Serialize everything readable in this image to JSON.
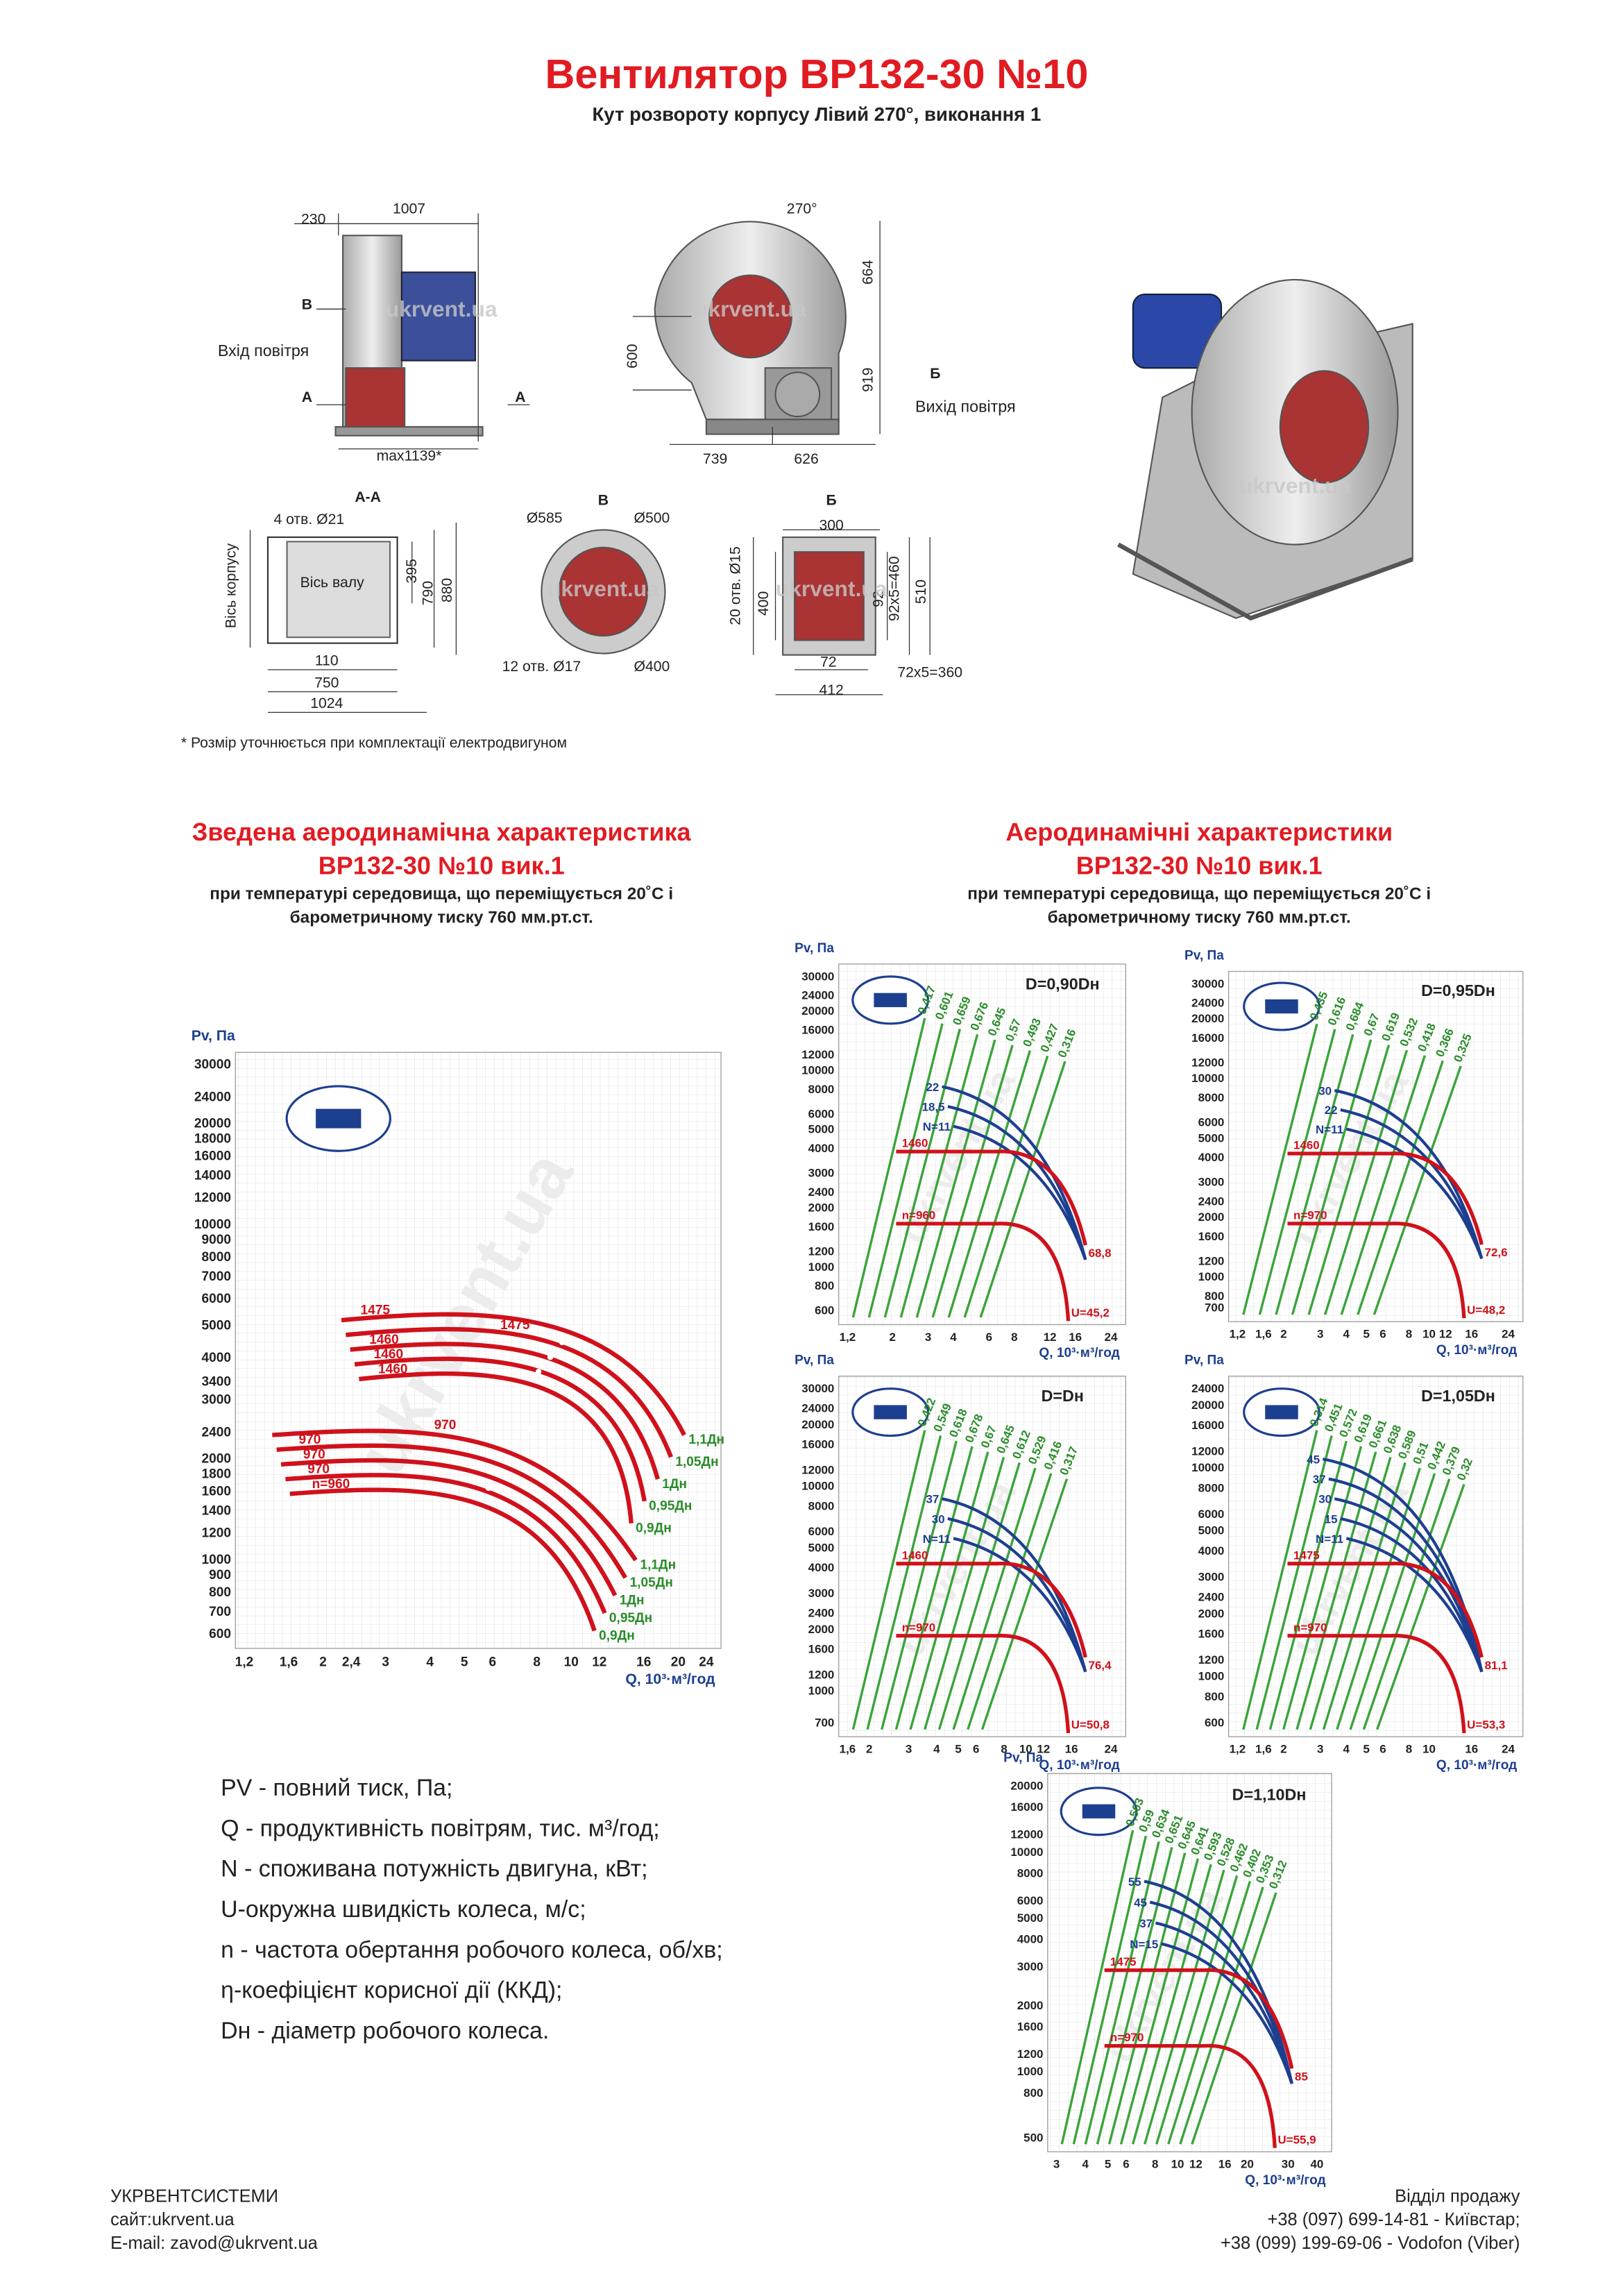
{
  "header": {
    "title": "Вентилятор ВР132-30 №10",
    "subtitle": "Кут розвороту корпусу Лівий 270°, виконання 1"
  },
  "drawings": {
    "front": [
      "230",
      "1007",
      "В",
      "Вхід повітря",
      "А",
      "А",
      "max1139*"
    ],
    "side": [
      "270°",
      "664",
      "600",
      "919",
      "Б",
      "Вихід повітря",
      "739",
      "626"
    ],
    "section_aa": [
      "А-А",
      "4 отв. Ø21",
      "Вісь корпусу",
      "Вісь валу",
      "395",
      "790",
      "880",
      "110",
      "750",
      "1024"
    ],
    "view_v": [
      "В",
      "Ø585",
      "Ø500",
      "12 отв. Ø17",
      "Ø400"
    ],
    "view_b": [
      "Б",
      "300",
      "20 отв. Ø15",
      "400",
      "92",
      "92x5=460",
      "510",
      "72",
      "72x5=360",
      "412"
    ],
    "note": "* Розмір уточнюється при комплектації електродвигуном"
  },
  "watermark": "ukrvent.ua",
  "summary": {
    "title": [
      "Зведена аеродинамічна характеристика",
      "ВР132-30 №10 вик.1",
      "при температурі середовища, що переміщується 20˚С і",
      "барометричному тиску 760 мм.рт.ст."
    ],
    "chart": {
      "y_label": "Pv, Па",
      "x_label": "Q, 10³·м³/год",
      "yticks": [
        "30000",
        "24000",
        "20000",
        "18000",
        "16000",
        "14000",
        "12000",
        "10000",
        "9000",
        "8000",
        "7000",
        "6000",
        "5000",
        "4000",
        "3400",
        "3000",
        "2400",
        "2000",
        "1800",
        "1600",
        "1400",
        "1200",
        "1000",
        "900",
        "800",
        "700",
        "600"
      ],
      "xticks": [
        "1,2",
        "1,6",
        "2",
        "2,4",
        "3",
        "4",
        "5",
        "6",
        "8",
        "10",
        "12",
        "16",
        "20",
        "24"
      ],
      "upper": [
        {
          "speed": "1475",
          "d": "1,1Дн"
        },
        {
          "speed": "1475",
          "d": "1,05Дн"
        },
        {
          "speed": "1460",
          "d": "1Дн"
        },
        {
          "speed": "1460",
          "d": "0,95Дн"
        },
        {
          "speed": "1460",
          "d": "0,9Дн"
        }
      ],
      "lower": [
        {
          "speed": "970",
          "d": "1,1Дн"
        },
        {
          "speed": "970",
          "d": "1,05Дн"
        },
        {
          "speed": "970",
          "d": "1Дн"
        },
        {
          "speed": "970",
          "d": "0,95Дн"
        },
        {
          "speed": "n=960",
          "d": "0,9Дн"
        }
      ]
    }
  },
  "performance": {
    "title": [
      "Аеродинамічні характеристики",
      "ВР132-30 №10 вик.1",
      "при температурі середовища, що переміщується 20˚С і",
      "барометричному тиску 760 мм.рт.ст."
    ],
    "charts": [
      {
        "title": "D=0,90Dн",
        "y_label": "Pv, Па",
        "x_label": "Q, 10³·м³/год",
        "yticks": [
          "30000",
          "24000",
          "20000",
          "16000",
          "12000",
          "10000",
          "8000",
          "6000",
          "5000",
          "4000",
          "3000",
          "2400",
          "2000",
          "1600",
          "1200",
          "1000",
          "800",
          "600"
        ],
        "xticks": [
          "1,2",
          "2",
          "3",
          "4",
          "6",
          "8",
          "12",
          "16",
          "24"
        ],
        "speeds": [
          "1460",
          "n=960"
        ],
        "powers": [
          "N=11",
          "18,5",
          "22"
        ],
        "efficiency": [
          "0,417",
          "0,601",
          "0,659",
          "0,676",
          "0,645",
          "0,57",
          "0,493",
          "0,427",
          "0,316"
        ],
        "ends": [
          "68,8",
          "U=45,2"
        ]
      },
      {
        "title": "D=0,95Dн",
        "y_label": "Pv, Па",
        "x_label": "Q, 10³·м³/год",
        "yticks": [
          "30000",
          "24000",
          "20000",
          "16000",
          "12000",
          "10000",
          "8000",
          "6000",
          "5000",
          "4000",
          "3000",
          "2400",
          "2000",
          "1600",
          "1200",
          "1000",
          "800",
          "700"
        ],
        "xticks": [
          "1,2",
          "1,6",
          "2",
          "3",
          "4",
          "5",
          "6",
          "8",
          "10",
          "12",
          "16",
          "24"
        ],
        "speeds": [
          "1460",
          "n=970"
        ],
        "powers": [
          "N=11",
          "22",
          "30"
        ],
        "efficiency": [
          "0,435",
          "0,616",
          "0,684",
          "0,67",
          "0,619",
          "0,532",
          "0,418",
          "0,366",
          "0,325"
        ],
        "ends": [
          "72,6",
          "U=48,2"
        ]
      },
      {
        "title": "D=Dн",
        "y_label": "Pv, Па",
        "x_label": "Q, 10³·м³/год",
        "yticks": [
          "30000",
          "24000",
          "20000",
          "16000",
          "12000",
          "10000",
          "8000",
          "6000",
          "5000",
          "4000",
          "3000",
          "2400",
          "2000",
          "1600",
          "1200",
          "1000",
          "700"
        ],
        "xticks": [
          "1,6",
          "2",
          "3",
          "4",
          "5",
          "6",
          "8",
          "10",
          "12",
          "16",
          "24"
        ],
        "speeds": [
          "1460",
          "n=970"
        ],
        "powers": [
          "N=11",
          "30",
          "37"
        ],
        "efficiency": [
          "0,422",
          "0,549",
          "0,618",
          "0,678",
          "0,67",
          "0,645",
          "0,612",
          "0,529",
          "0,416",
          "0,317"
        ],
        "ends": [
          "76,4",
          "U=50,8"
        ]
      },
      {
        "title": "D=1,05Dн",
        "y_label": "Pv, Па",
        "x_label": "Q, 10³·м³/год",
        "yticks": [
          "24000",
          "20000",
          "16000",
          "12000",
          "10000",
          "8000",
          "6000",
          "5000",
          "4000",
          "3000",
          "2400",
          "2000",
          "1600",
          "1200",
          "1000",
          "800",
          "600"
        ],
        "xticks": [
          "1,2",
          "1,6",
          "2",
          "3",
          "4",
          "5",
          "6",
          "8",
          "10",
          "16",
          "24"
        ],
        "speeds": [
          "1475",
          "n=970"
        ],
        "powers": [
          "N=11",
          "15",
          "30",
          "37",
          "45"
        ],
        "efficiency": [
          "0,314",
          "0,451",
          "0,572",
          "0,619",
          "0,661",
          "0,638",
          "0,589",
          "0,51",
          "0,442",
          "0,379",
          "0,32"
        ],
        "ends": [
          "81,1",
          "U=53,3"
        ]
      },
      {
        "title": "D=1,10Dн",
        "y_label": "Pv, Па",
        "x_label": "Q, 10³·м³/год",
        "yticks": [
          "20000",
          "16000",
          "12000",
          "10000",
          "8000",
          "6000",
          "5000",
          "4000",
          "3000",
          "2000",
          "1600",
          "1200",
          "1000",
          "800",
          "500"
        ],
        "xticks": [
          "3",
          "4",
          "5",
          "6",
          "8",
          "10",
          "12",
          "16",
          "20",
          "30",
          "40"
        ],
        "speeds": [
          "1475",
          "n=970"
        ],
        "powers": [
          "N=15",
          "37",
          "45",
          "55"
        ],
        "efficiency": [
          "0,503",
          "0,59",
          "0,634",
          "0,651",
          "0,645",
          "0,641",
          "0,593",
          "0,528",
          "0,462",
          "0,402",
          "0,353",
          "0,312"
        ],
        "ends": [
          "85",
          "U=55,9"
        ]
      }
    ]
  },
  "legend": [
    "PV - повний тиск, Па;",
    "Q - продуктивність повітрям, тис. м³/год;",
    "N - споживана потужність двигуна, кВт;",
    "U-окружна швидкість колеса, м/с;",
    "n - частота обертання робочого колеса, об/хв;",
    "η-коефіцієнт корисної дії (ККД);",
    "Dн - діаметр робочого колеса."
  ],
  "footer": {
    "company": [
      "УКРВЕНТСИСТЕМИ",
      "сайт:ukrvent.ua",
      "E-mail: zavod@ukrvent.ua"
    ],
    "sales": [
      "Відділ продажу",
      "+38 (097) 699-14-81 - Київстар;",
      "+38 (099) 199-69-06 - Vodofon (Viber)"
    ]
  }
}
